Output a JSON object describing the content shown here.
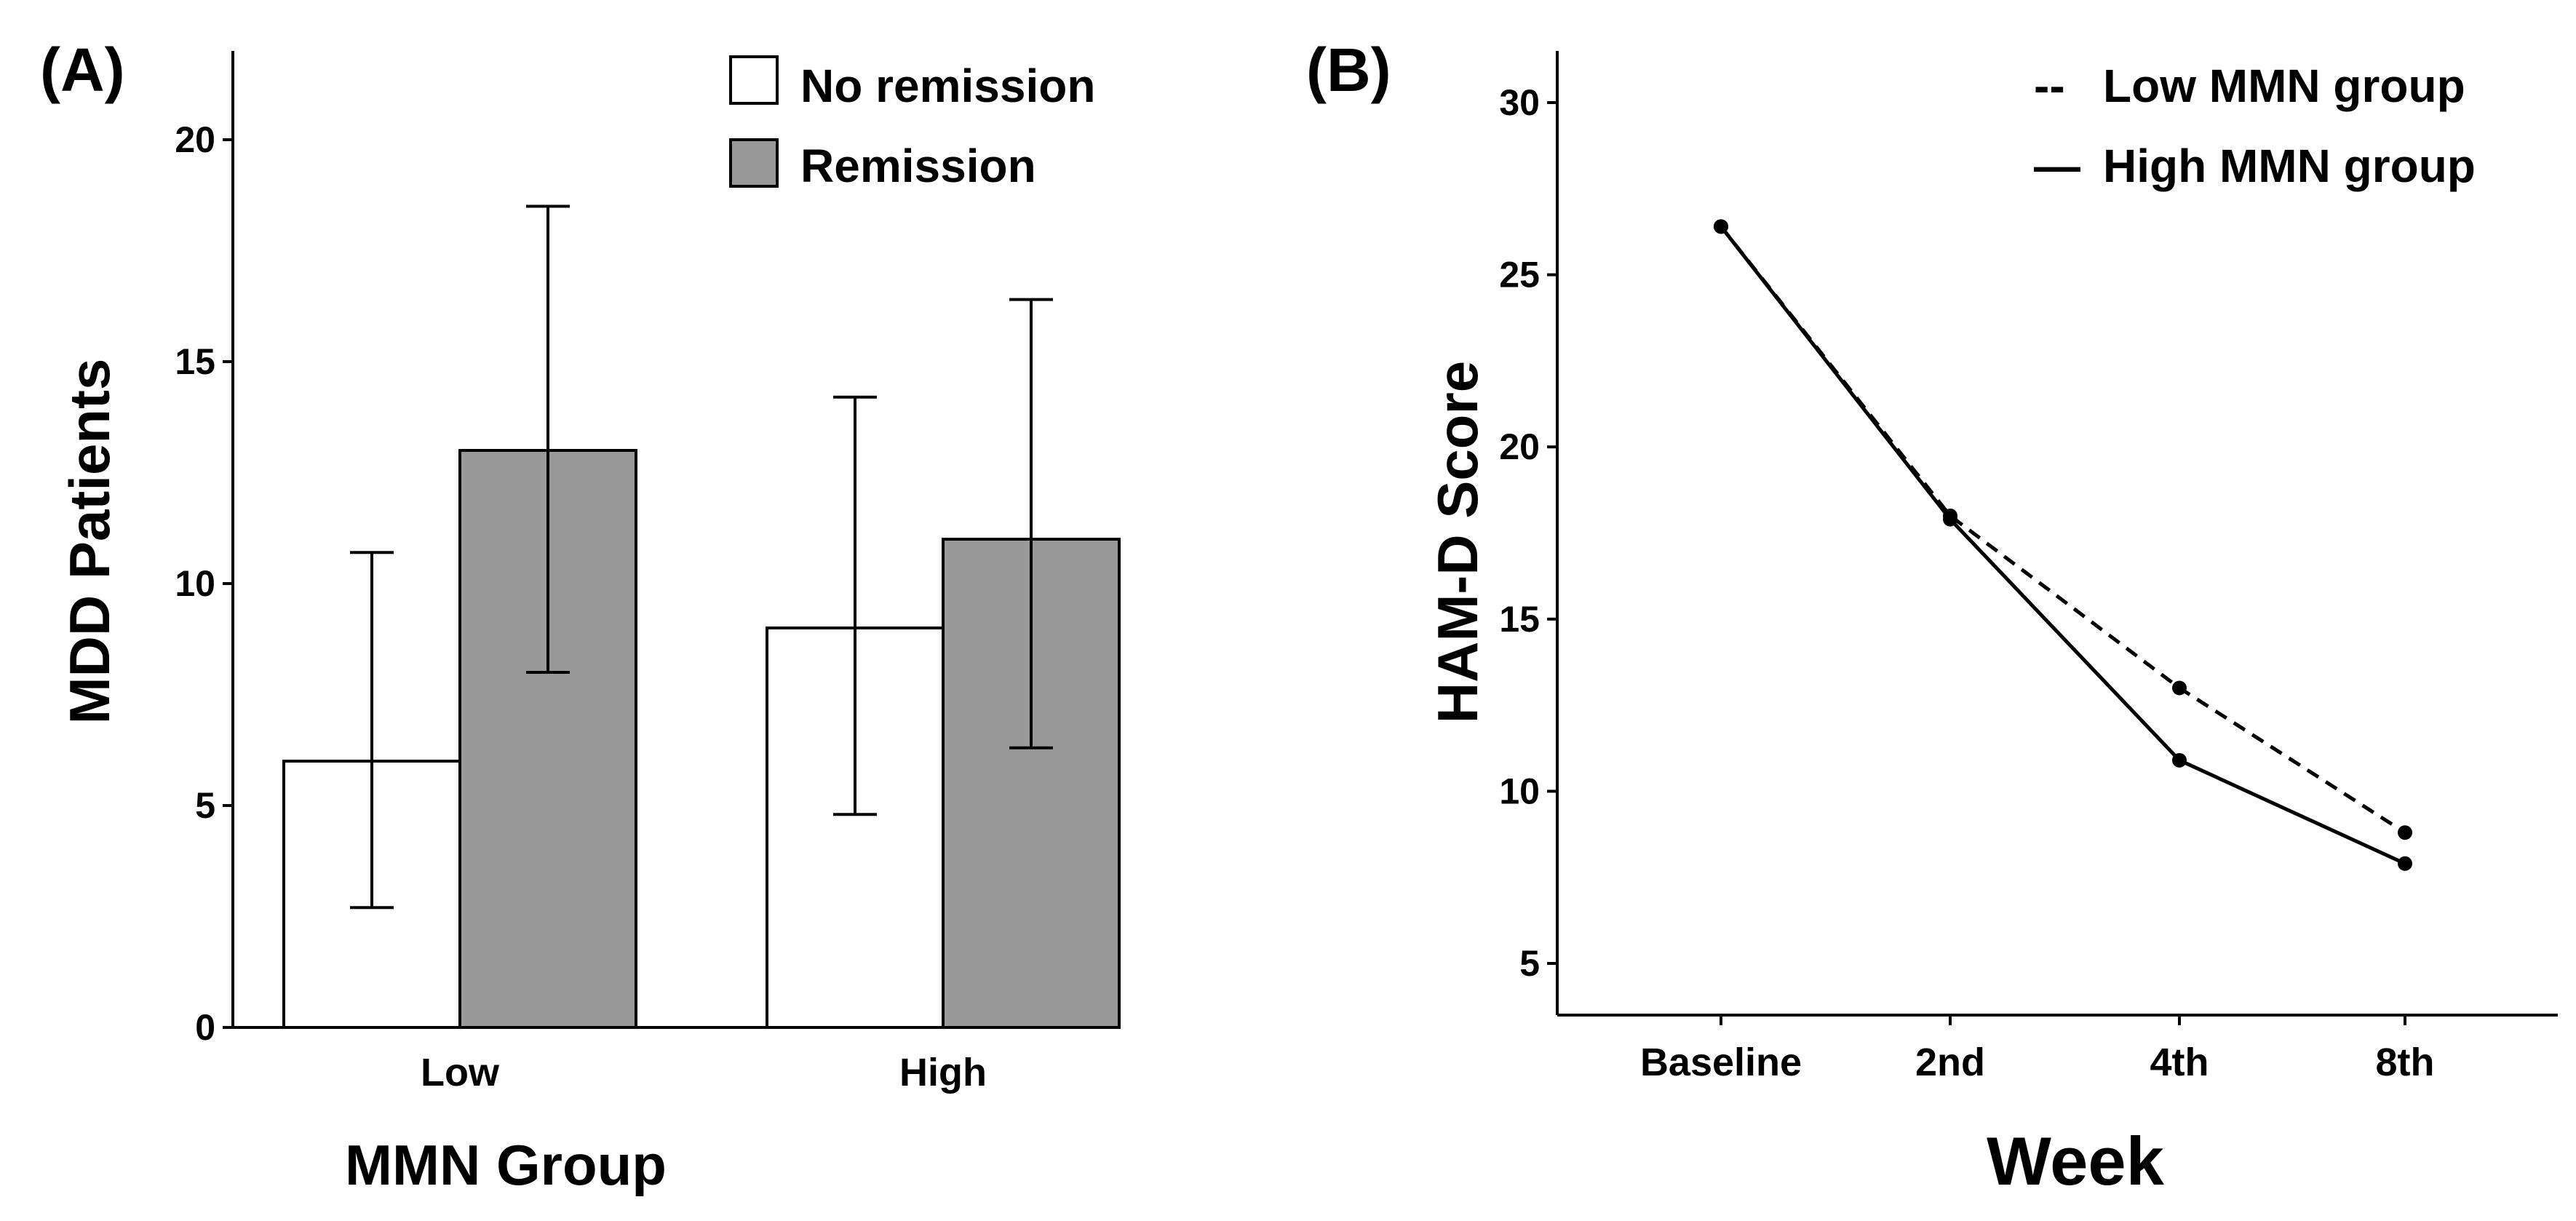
{
  "chart_data": [
    {
      "panel_label": "(A)",
      "type": "bar",
      "categories": [
        "Low",
        "High"
      ],
      "series": [
        {
          "name": "No remission",
          "values": [
            6,
            9
          ],
          "err_low": [
            2.7,
            4.8
          ],
          "err_high": [
            10.7,
            14.2
          ],
          "color": "#ffffff"
        },
        {
          "name": "Remission",
          "values": [
            13,
            11
          ],
          "err_low": [
            8.0,
            6.3
          ],
          "err_high": [
            18.5,
            16.4
          ],
          "color": "#999999"
        }
      ],
      "xlabel": "MMN Group",
      "ylabel": "MDD Patients",
      "ylim": [
        0,
        22
      ],
      "yticks": [
        0,
        5,
        10,
        15,
        20
      ],
      "legend_position": "top-right",
      "grid": false
    },
    {
      "panel_label": "(B)",
      "type": "line",
      "categories": [
        "Baseline",
        "2nd",
        "4th",
        "8th"
      ],
      "series": [
        {
          "name": "Low MMN group",
          "values": [
            26.4,
            18.0,
            13.0,
            8.8
          ],
          "style": "dashed"
        },
        {
          "name": "High MMN group",
          "values": [
            26.4,
            17.9,
            10.9,
            7.9
          ],
          "style": "solid"
        }
      ],
      "legend_marks": [
        "--",
        "—"
      ],
      "xlabel": "Week",
      "ylabel": "HAM-D Score",
      "ylim": [
        3.5,
        31.5
      ],
      "yticks": [
        5,
        10,
        15,
        20,
        25,
        30
      ],
      "legend_position": "top-right",
      "grid": false
    }
  ]
}
